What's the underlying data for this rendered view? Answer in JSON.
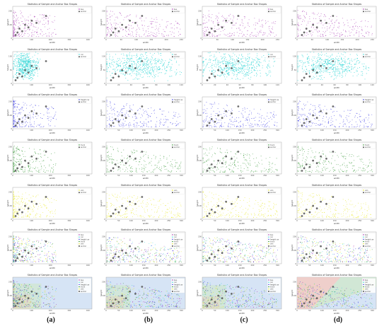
{
  "captions": [
    "(a)",
    "(b)",
    "(c)",
    "(d)"
  ],
  "chart_data": {
    "type": "scatter",
    "grid": {
      "rows": 7,
      "cols": 4
    },
    "panel_title": "Statistics of Sample and Anchor Box Shapes",
    "xlabel": "width",
    "ylabel": "height",
    "rows": [
      {
        "series": [
          {
            "name": "bus",
            "color": "#9b1aa8"
          },
          {
            "name": "anchor",
            "color": "#555555"
          }
        ],
        "xticks": {
          "a": [
            "0",
            "100",
            "200",
            "300",
            "400"
          ],
          "b": [
            "0",
            "50",
            "100",
            "150",
            "200",
            "250"
          ]
        },
        "yticks": [
          "0",
          "100",
          "200"
        ]
      },
      {
        "series": [
          {
            "name": "car",
            "color": "#22d3d3"
          },
          {
            "name": "anchor",
            "color": "#555555"
          }
        ],
        "xticks": {
          "a": [
            "0",
            "100",
            "200",
            "300",
            "400"
          ],
          "b": [
            "0",
            "20",
            "40",
            "60",
            "80",
            "100",
            "120"
          ]
        },
        "yticks": [
          "0",
          "50",
          "100"
        ]
      },
      {
        "series": [
          {
            "name": "freight car",
            "color": "#1a1ae0"
          },
          {
            "name": "anchor",
            "color": "#555555"
          }
        ],
        "xticks": {
          "a": [
            "0",
            "100",
            "200",
            "300",
            "400"
          ],
          "b": [
            "0",
            "50",
            "100",
            "150",
            "200",
            "250",
            "300"
          ]
        },
        "yticks": [
          "0",
          "100",
          "200"
        ]
      },
      {
        "series": [
          {
            "name": "truck",
            "color": "#1a8a1a"
          },
          {
            "name": "anchor",
            "color": "#555555"
          }
        ],
        "xticks": {
          "a": [
            "0",
            "100",
            "200",
            "300",
            "400"
          ],
          "b": [
            "0",
            "50",
            "100",
            "150",
            "200",
            "250",
            "300"
          ]
        },
        "yticks": [
          "0",
          "100",
          "200"
        ]
      },
      {
        "series": [
          {
            "name": "van",
            "color": "#e6e600"
          },
          {
            "name": "anchor",
            "color": "#555555"
          }
        ],
        "xticks": {
          "a": [
            "0",
            "100",
            "200",
            "300",
            "400"
          ],
          "b": [
            "0",
            "50",
            "100",
            "150",
            "200",
            "250",
            "300"
          ]
        },
        "yticks": [
          "0",
          "100",
          "200"
        ]
      },
      {
        "series": [
          {
            "name": "bus",
            "color": "#9b1aa8"
          },
          {
            "name": "car",
            "color": "#22d3d3"
          },
          {
            "name": "freight car",
            "color": "#1a1ae0"
          },
          {
            "name": "truck",
            "color": "#1a8a1a"
          },
          {
            "name": "van",
            "color": "#e6e600"
          },
          {
            "name": "anchor",
            "color": "#555555"
          }
        ],
        "xticks": {
          "a": [
            "0",
            "100",
            "200",
            "300",
            "400"
          ],
          "b": [
            "0",
            "50",
            "100",
            "150",
            "200",
            "250",
            "300"
          ]
        },
        "yticks": [
          "0",
          "100",
          "200"
        ]
      },
      {
        "series": [
          {
            "name": "bus",
            "color": "#9b1aa8"
          },
          {
            "name": "car",
            "color": "#22d3d3"
          },
          {
            "name": "freight car",
            "color": "#1a1ae0"
          },
          {
            "name": "truck",
            "color": "#1a8a1a"
          },
          {
            "name": "van",
            "color": "#e6e600"
          },
          {
            "name": "anchor",
            "color": "#555555"
          }
        ],
        "xticks": {
          "a": [
            "0",
            "100",
            "200",
            "300",
            "400"
          ],
          "b": [
            "0",
            "50",
            "100",
            "150",
            "200",
            "250",
            "300"
          ]
        },
        "yticks": [
          "0",
          "100",
          "200"
        ],
        "region_colors": [
          "#d6e4f5",
          "#f5c9c0",
          "#cfe8c8"
        ]
      }
    ]
  }
}
